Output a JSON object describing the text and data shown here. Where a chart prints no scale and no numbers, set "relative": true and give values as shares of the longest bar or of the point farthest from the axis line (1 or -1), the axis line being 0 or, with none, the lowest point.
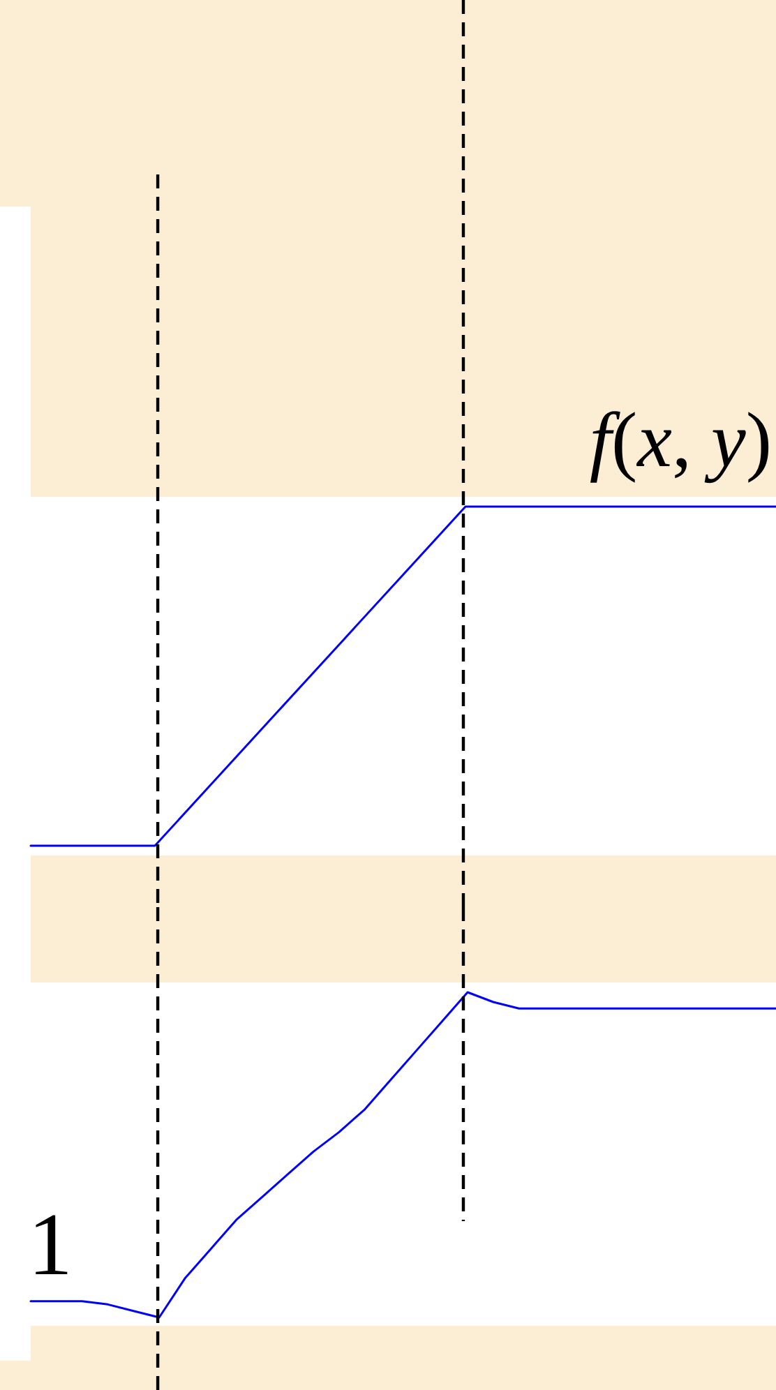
{
  "chart_data": [
    {
      "type": "line",
      "title": "f(x, y)",
      "categories": [
        null,
        null,
        null,
        null,
        null,
        null,
        null,
        null,
        null,
        null,
        null,
        null,
        null
      ],
      "values": [
        0,
        0,
        0,
        0.2,
        0.4,
        0.6,
        0.8,
        1,
        1,
        1,
        1,
        1,
        1
      ],
      "color": "#0000ff",
      "relative": true,
      "tick_labels": false
    },
    {
      "type": "line",
      "annotations": [
        "1"
      ],
      "categories": [
        null,
        null,
        null,
        null,
        null,
        null,
        null,
        null,
        null,
        null,
        null,
        null,
        null,
        null,
        null,
        null,
        null,
        null,
        null,
        null,
        null,
        null,
        null,
        null,
        null,
        null,
        null,
        null,
        null,
        null
      ],
      "values": [
        0.05,
        0.05,
        0.05,
        0.04,
        0.02,
        0,
        0.12,
        0.21,
        0.3,
        0.37,
        0.44,
        0.51,
        0.57,
        0.64,
        0.73,
        0.82,
        0.91,
        1,
        0.97,
        0.95,
        0.95,
        0.95,
        0.95,
        0.95,
        0.95,
        0.95,
        0.95,
        0.95,
        0.95,
        0.95
      ],
      "color": "#0000ff",
      "relative": true,
      "tick_labels": false
    }
  ]
}
